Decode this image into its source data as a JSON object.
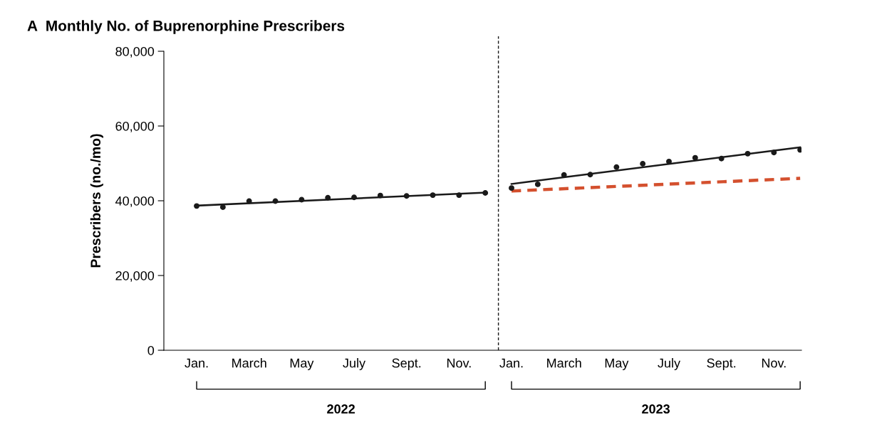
{
  "chart_data": {
    "type": "scatter",
    "title": "A  Monthly No. of Buprenorphine Prescribers",
    "ylabel": "Prescribers (no./mo)",
    "categories": [
      "Jan.",
      null,
      "March",
      null,
      "May",
      null,
      "July",
      null,
      "Sept.",
      null,
      "Nov.",
      null,
      "Jan.",
      null,
      "March",
      null,
      "May",
      null,
      "July",
      null,
      "Sept.",
      null,
      "Nov.",
      null
    ],
    "ylim": [
      0,
      80000
    ],
    "yticks": [
      0,
      {
        "value": 20000,
        "label": "20,000"
      },
      {
        "value": 40000,
        "label": "40,000"
      },
      {
        "value": 60000,
        "label": "60,000"
      },
      {
        "value": 80000,
        "label": "80,000"
      }
    ],
    "grid": false,
    "series": [
      {
        "color": "#1a1a1a",
        "marker": "circle",
        "values": [
          38600,
          38300,
          39900,
          39900,
          40300,
          40800,
          40900,
          41400,
          41300,
          41500,
          41500,
          42100,
          43400,
          44400,
          46900,
          47000,
          49000,
          49900,
          50500,
          51500,
          51300,
          52600,
          52900,
          53600
        ]
      },
      {
        "type": "line",
        "color": "#1a1a1a",
        "line_style": "solid",
        "values": [
          38700,
          null,
          null,
          null,
          null,
          null,
          null,
          null,
          null,
          null,
          null,
          42200,
          null,
          null,
          null,
          null,
          null,
          null,
          null,
          null,
          null,
          null,
          null,
          null
        ]
      },
      {
        "type": "line",
        "color": "#1a1a1a",
        "line_style": "solid",
        "values": [
          null,
          null,
          null,
          null,
          null,
          null,
          null,
          null,
          null,
          null,
          null,
          null,
          44500,
          null,
          null,
          null,
          null,
          null,
          null,
          null,
          null,
          null,
          null,
          54300
        ]
      },
      {
        "type": "line",
        "color": "#d4502e",
        "line_style": "dashed",
        "values": [
          null,
          null,
          null,
          null,
          null,
          null,
          null,
          null,
          null,
          null,
          null,
          null,
          42600,
          null,
          null,
          null,
          null,
          null,
          null,
          null,
          null,
          null,
          null,
          46000
        ]
      }
    ],
    "annotations": [
      "2022",
      "2023"
    ]
  }
}
